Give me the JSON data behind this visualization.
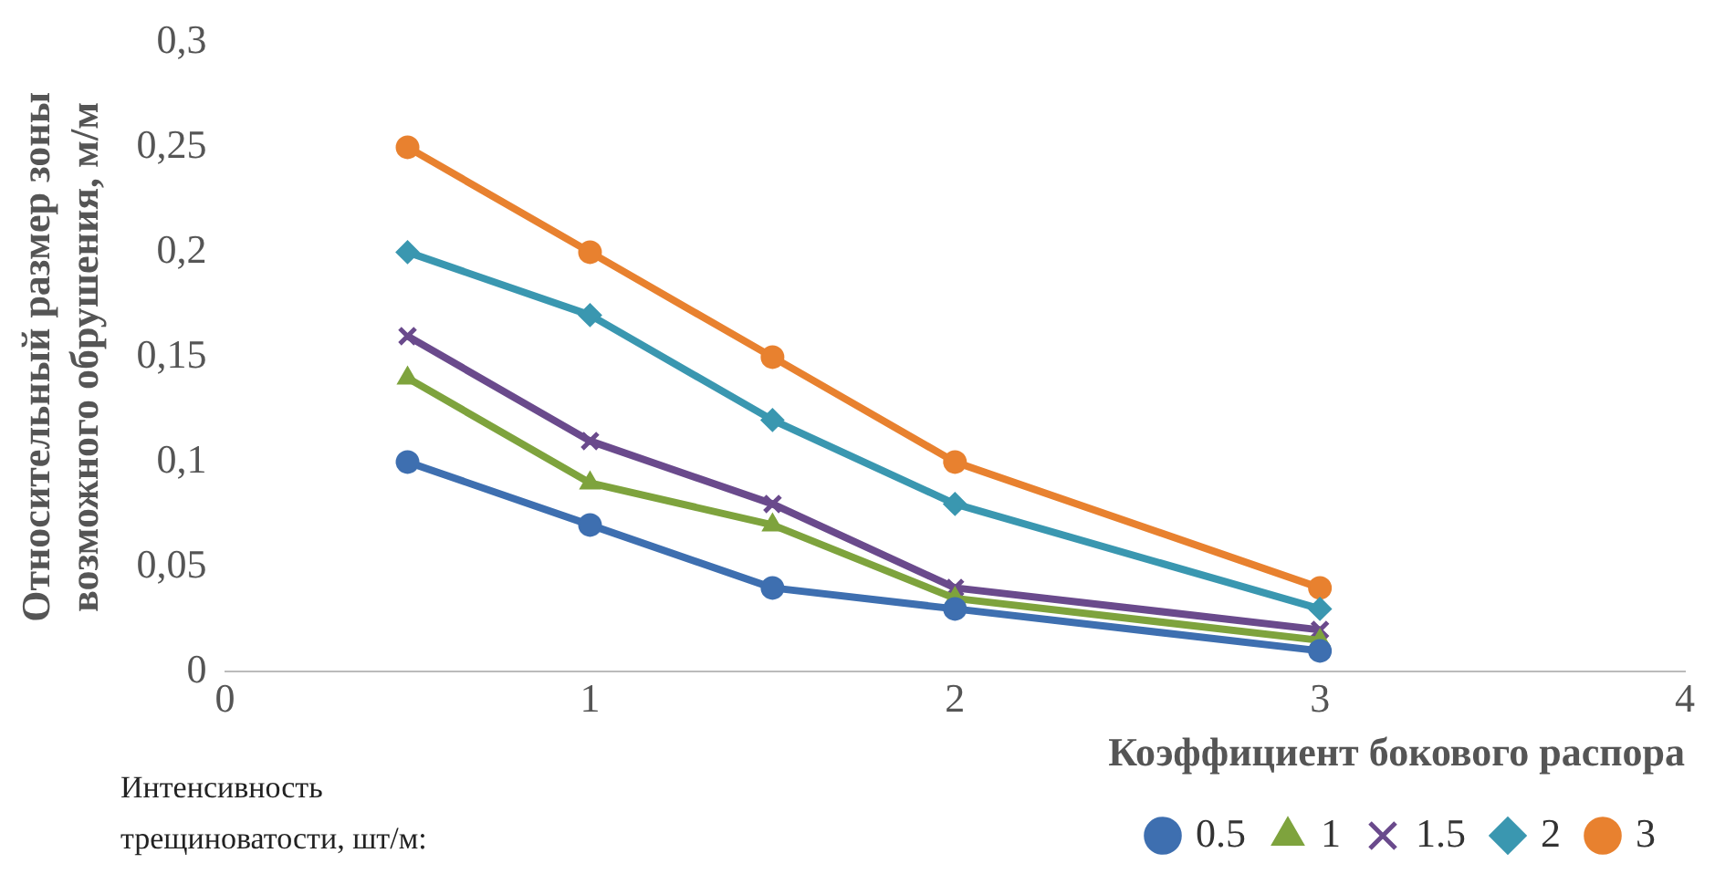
{
  "chart_data": {
    "type": "line",
    "xlabel": "Коэффициент бокового распора",
    "ylabel": "Относительный размер зоны возможного обрушения, м/м",
    "legend_title": "Интенсивность трещиноватости, шт/м:",
    "legend": "bottom",
    "grid": false,
    "x": [
      0.5,
      1,
      1.5,
      2,
      3
    ],
    "xlim": [
      0,
      4
    ],
    "xticks": [
      0,
      1,
      2,
      3,
      4
    ],
    "ylim": [
      0,
      0.3
    ],
    "yticks": [
      0,
      {
        "value": 0.05,
        "label": "0,05"
      },
      {
        "value": 0.1,
        "label": "0,1"
      },
      {
        "value": 0.15,
        "label": "0,15"
      },
      {
        "value": 0.2,
        "label": "0,2"
      },
      {
        "value": 0.25,
        "label": "0,25"
      },
      {
        "value": 0.3,
        "label": "0,3"
      }
    ],
    "series": [
      {
        "name": "0.5",
        "color": "#3e6fb0",
        "marker": "circle",
        "values": [
          0.1,
          0.07,
          0.04,
          0.03,
          0.01
        ]
      },
      {
        "name": "1",
        "color": "#7ea33d",
        "marker": "triangle",
        "values": [
          0.14,
          0.09,
          0.07,
          0.035,
          0.015
        ]
      },
      {
        "name": "1.5",
        "color": "#6a4a8c",
        "marker": "cross",
        "values": [
          0.16,
          0.11,
          0.08,
          0.04,
          0.02
        ]
      },
      {
        "name": "2",
        "color": "#3a97b0",
        "marker": "diamond",
        "values": [
          0.2,
          0.17,
          0.12,
          0.08,
          0.03
        ]
      },
      {
        "name": "3",
        "color": "#e8812f",
        "marker": "circle",
        "values": [
          0.25,
          0.2,
          0.15,
          0.1,
          0.04
        ]
      }
    ]
  }
}
